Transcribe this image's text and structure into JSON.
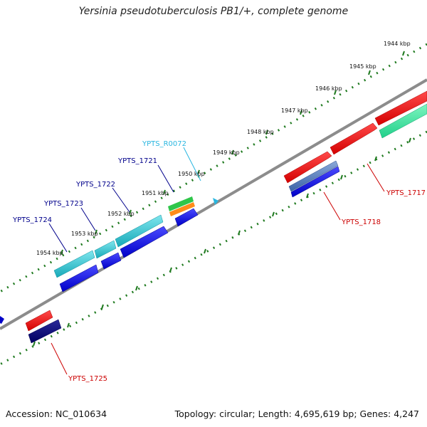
{
  "title": "Yersinia pseudotuberculosis PB1/+, complete genome",
  "footer": {
    "accession": "Accession: NC_010634",
    "summary": "Topology: circular; Length: 4,695,619 bp; Genes: 4,247"
  },
  "colors": {
    "backbone": "#808080",
    "tick_track": "#1f7a1f",
    "label_blue": "#00008b",
    "label_red": "#cc0000",
    "label_cyan": "#29b6e0"
  },
  "ticks": [
    {
      "label": "1944 kbp"
    },
    {
      "label": "1945 kbp"
    },
    {
      "label": "1946 kbp"
    },
    {
      "label": "1947 kbp"
    },
    {
      "label": "1948 kbp"
    },
    {
      "label": "1949 kbp"
    },
    {
      "label": "1950 kbp"
    },
    {
      "label": "1951 kbp"
    },
    {
      "label": "1952 kbp"
    },
    {
      "label": "1953 kbp"
    },
    {
      "label": "1954 kbp"
    }
  ],
  "genes": [
    {
      "label": "YPTS_R0072",
      "color": "#29b6e0"
    },
    {
      "label": "YPTS_1721",
      "color": "#00008b"
    },
    {
      "label": "YPTS_1722",
      "color": "#00008b"
    },
    {
      "label": "YPTS_1723",
      "color": "#00008b"
    },
    {
      "label": "YPTS_1724",
      "color": "#00008b"
    },
    {
      "label": "YPTS_1717",
      "color": "#cc0000"
    },
    {
      "label": "YPTS_1718",
      "color": "#cc0000"
    },
    {
      "label": "YPTS_1725",
      "color": "#cc0000"
    }
  ]
}
